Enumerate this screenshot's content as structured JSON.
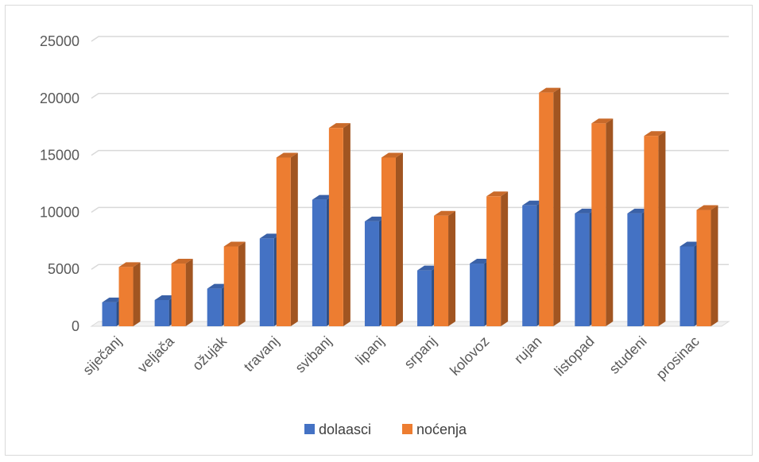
{
  "chart_data": {
    "type": "bar",
    "title": "",
    "xlabel": "",
    "ylabel": "",
    "categories": [
      "siječanj",
      "veljača",
      "ožujak",
      "travanj",
      "svibanj",
      "lipanj",
      "srpanj",
      "kolovoz",
      "rujan",
      "listopad",
      "studeni",
      "prosinac"
    ],
    "series": [
      {
        "name": "dolaasci",
        "color": "#4472c4",
        "values": [
          2100,
          2300,
          3300,
          7700,
          11100,
          9200,
          4900,
          5500,
          10600,
          9900,
          9900,
          7000
        ]
      },
      {
        "name": "noćenja",
        "color": "#ed7d31",
        "values": [
          5200,
          5500,
          7000,
          14800,
          17400,
          14800,
          9700,
          11400,
          20500,
          17800,
          16700,
          10200
        ]
      }
    ],
    "ylim": [
      0,
      25000
    ],
    "yticks": [
      "0",
      "5000",
      "10000",
      "15000",
      "20000",
      "25000"
    ],
    "grid": true,
    "legend_position": "bottom"
  }
}
